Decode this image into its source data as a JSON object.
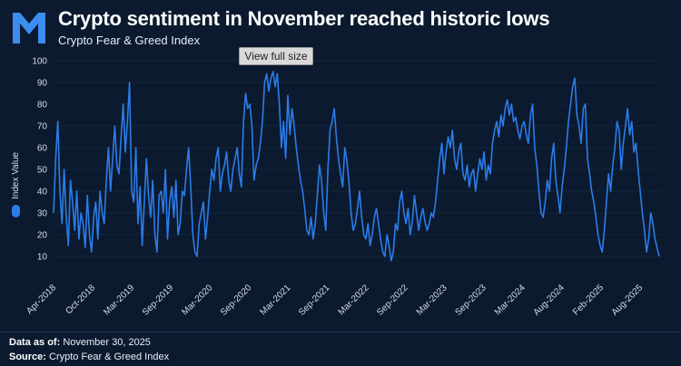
{
  "header": {
    "title": "Crypto sentiment in November reached historic lows",
    "subtitle": "Crypto Fear & Greed Index"
  },
  "overlay": {
    "view_full_size": "View full size"
  },
  "footer": {
    "data_as_of_label": "Data as of:",
    "data_as_of_value": "November 30, 2025",
    "source_label": "Source:",
    "source_value": "Crypto Fear & Greed Index"
  },
  "colors": {
    "background": "#0b1a2e",
    "series": "#2b7ce9",
    "logo": "#3b8df0"
  },
  "chart_data": {
    "type": "line",
    "title": "Crypto sentiment in November reached historic lows",
    "subtitle": "Crypto Fear & Greed Index",
    "xlabel": "",
    "ylabel": "Index Value",
    "ylim": [
      0,
      100
    ],
    "yticks": [
      10,
      20,
      30,
      40,
      50,
      60,
      70,
      80,
      90,
      100
    ],
    "x_tick_labels": [
      "Apr-2018",
      "Oct-2018",
      "Mar-2019",
      "Sep-2019",
      "Mar-2020",
      "Sep-2020",
      "Mar-2021",
      "Sep-2021",
      "Mar-2022",
      "Sep-2022",
      "Mar-2023",
      "Sep-2023",
      "Mar-2024",
      "Aug-2024",
      "Feb-2025",
      "Aug-2025"
    ],
    "legend": [
      {
        "name": "Index Value",
        "position": "left"
      }
    ],
    "series": [
      {
        "name": "Index Value",
        "values": [
          30,
          55,
          72,
          40,
          25,
          50,
          28,
          15,
          45,
          35,
          22,
          40,
          18,
          30,
          25,
          14,
          38,
          20,
          12,
          28,
          35,
          18,
          40,
          30,
          25,
          45,
          60,
          40,
          55,
          70,
          52,
          48,
          65,
          80,
          58,
          72,
          90,
          40,
          35,
          60,
          25,
          42,
          15,
          35,
          55,
          38,
          28,
          45,
          20,
          12,
          38,
          40,
          30,
          50,
          18,
          35,
          42,
          28,
          45,
          20,
          25,
          40,
          38,
          50,
          60,
          42,
          20,
          12,
          10,
          25,
          30,
          35,
          18,
          28,
          40,
          50,
          45,
          55,
          60,
          40,
          48,
          52,
          58,
          45,
          40,
          50,
          55,
          60,
          48,
          42,
          72,
          85,
          78,
          80,
          70,
          45,
          52,
          55,
          62,
          72,
          90,
          94,
          86,
          92,
          95,
          88,
          94,
          80,
          60,
          72,
          55,
          84,
          66,
          78,
          70,
          60,
          52,
          45,
          40,
          32,
          22,
          20,
          28,
          18,
          25,
          38,
          52,
          45,
          30,
          22,
          50,
          68,
          72,
          78,
          65,
          55,
          48,
          42,
          60,
          54,
          44,
          30,
          22,
          25,
          32,
          40,
          28,
          20,
          18,
          25,
          15,
          20,
          28,
          32,
          25,
          18,
          12,
          10,
          20,
          15,
          8,
          12,
          25,
          22,
          35,
          40,
          30,
          25,
          32,
          20,
          26,
          38,
          30,
          22,
          28,
          32,
          26,
          22,
          25,
          30,
          28,
          35,
          45,
          55,
          62,
          48,
          58,
          65,
          60,
          68,
          55,
          50,
          58,
          62,
          48,
          45,
          52,
          42,
          48,
          50,
          40,
          48,
          55,
          50,
          58,
          45,
          52,
          48,
          62,
          68,
          72,
          65,
          75,
          70,
          78,
          82,
          75,
          80,
          72,
          74,
          68,
          64,
          70,
          72,
          66,
          62,
          75,
          80,
          60,
          52,
          40,
          30,
          28,
          35,
          45,
          40,
          55,
          62,
          45,
          38,
          30,
          42,
          50,
          60,
          72,
          80,
          88,
          92,
          75,
          70,
          62,
          78,
          80,
          55,
          48,
          40,
          35,
          28,
          20,
          15,
          12,
          22,
          35,
          48,
          40,
          52,
          60,
          72,
          68,
          50,
          62,
          70,
          78,
          66,
          72,
          58,
          62,
          50,
          40,
          30,
          22,
          12,
          18,
          30,
          25,
          18,
          14,
          10
        ]
      }
    ]
  }
}
